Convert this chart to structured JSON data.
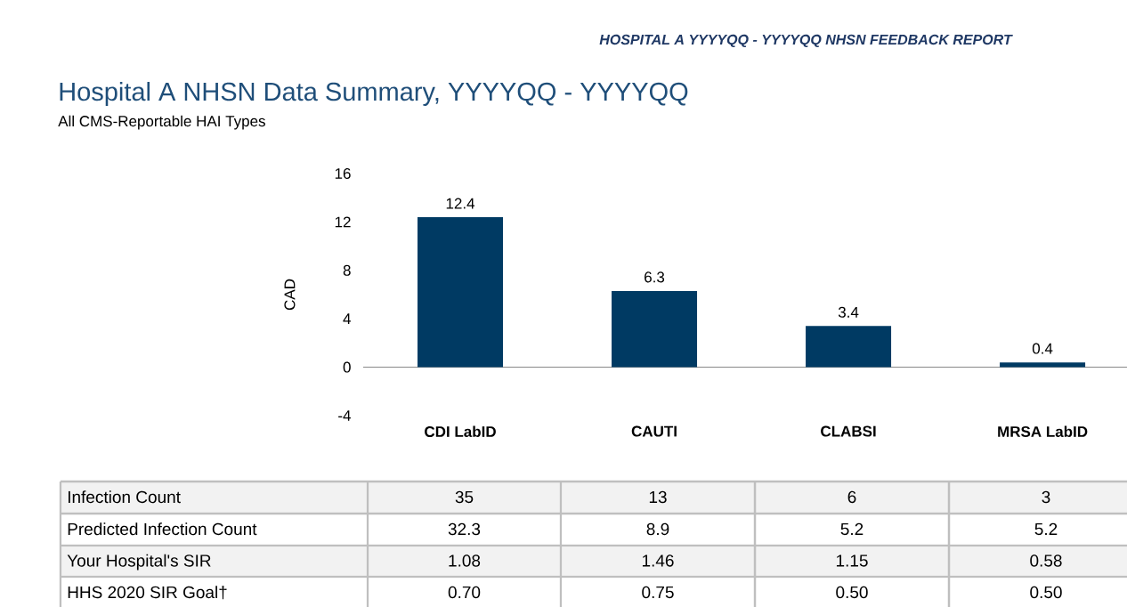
{
  "chart_data": {
    "type": "bar",
    "title": "Hospital A NHSN Data Summary, YYYYQQ - YYYYQQ",
    "subtitle": "All CMS-Reportable HAI Types",
    "ylabel": "CAD",
    "categories": [
      "CDI LabID",
      "CAUTI",
      "CLABSI",
      "MRSA LabID"
    ],
    "values": [
      12.4,
      6.3,
      3.4,
      0.4
    ],
    "color": "#003a63",
    "data_labels": true,
    "ylim": [
      -4,
      16
    ],
    "yticks": [
      -4,
      0,
      4,
      8,
      12,
      16
    ],
    "annotations": [
      "HOSPITAL A YYYYQQ - YYYYQQ NHSN FEEDBACK REPORT",
      "Infection Count",
      "35",
      "13",
      "6",
      "3",
      "Predicted Infection Count",
      "32.3",
      "8.9",
      "5.2",
      "5.2",
      "Your Hospital's SIR",
      "1.08",
      "1.46",
      "1.15",
      "0.58",
      "HHS 2020 SIR Goal†",
      "0.70",
      "0.75",
      "0.50",
      "0.50"
    ]
  }
}
